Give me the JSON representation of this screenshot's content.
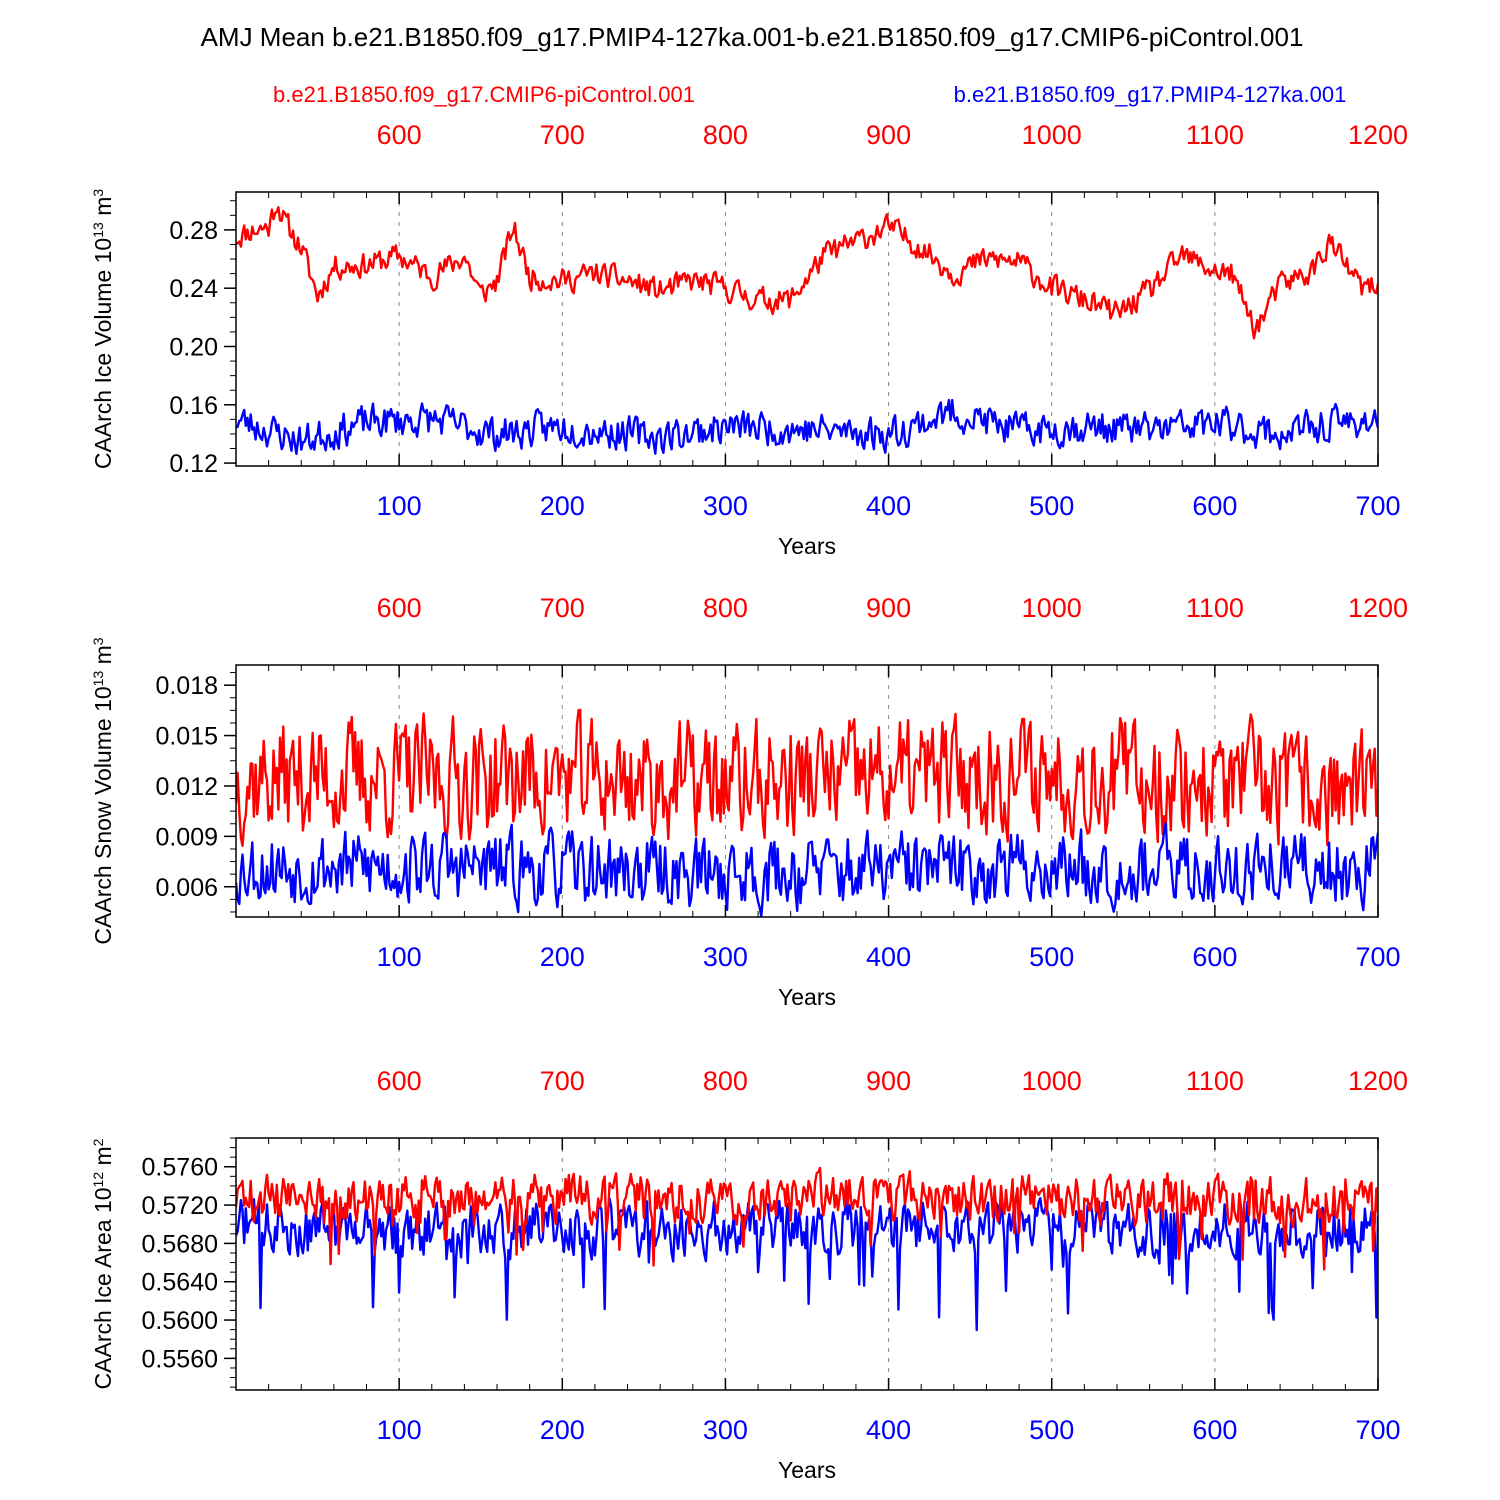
{
  "title": "AMJ Mean b.e21.B1850.f09_g17.PMIP4-127ka.001-b.e21.B1850.f09_g17.CMIP6-piControl.001",
  "legend": {
    "control_label": "b.e21.B1850.f09_g17.CMIP6-piControl.001",
    "pmip_label": "b.e21.B1850.f09_g17.PMIP4-127ka.001"
  },
  "colors": {
    "control": "#ff0000",
    "pmip": "#0000ff",
    "axis": "#000000",
    "grid": "#888888"
  },
  "chart_data": [
    {
      "type": "line",
      "ylabel_main": "CAArch Ice Volume 10",
      "ylabel_exp": "13",
      "ylabel_unit": " m",
      "ylabel_unit_exp": "3",
      "xlabel": "Years",
      "xlim_bottom": [
        0,
        700
      ],
      "xlim_top": [
        500,
        1200
      ],
      "ylim": [
        0.118,
        0.306
      ],
      "yticks": [
        0.12,
        0.16,
        0.2,
        0.24,
        0.28
      ],
      "yticklabels": [
        "0.12",
        "0.16",
        "0.20",
        "0.24",
        "0.28"
      ],
      "yminor_step": 0.01,
      "bottom_ticks": [
        100,
        200,
        300,
        400,
        500,
        600,
        700
      ],
      "bottom_ticklabels": [
        "100",
        "200",
        "300",
        "400",
        "500",
        "600",
        "700"
      ],
      "top_ticks": [
        600,
        700,
        800,
        900,
        1000,
        1100,
        1200
      ],
      "top_ticklabels": [
        "600",
        "700",
        "800",
        "900",
        "1000",
        "1100",
        "1200"
      ],
      "series": [
        {
          "name": "b.e21.B1850.f09_g17.CMIP6-piControl.001",
          "color": "#ff0000",
          "anchors": [
            [
              0,
              0.275
            ],
            [
              10,
              0.28
            ],
            [
              20,
              0.282
            ],
            [
              25,
              0.3
            ],
            [
              30,
              0.285
            ],
            [
              40,
              0.268
            ],
            [
              50,
              0.235
            ],
            [
              60,
              0.255
            ],
            [
              80,
              0.256
            ],
            [
              100,
              0.262
            ],
            [
              120,
              0.248
            ],
            [
              140,
              0.262
            ],
            [
              150,
              0.235
            ],
            [
              160,
              0.245
            ],
            [
              170,
              0.282
            ],
            [
              180,
              0.248
            ],
            [
              200,
              0.245
            ],
            [
              220,
              0.25
            ],
            [
              240,
              0.245
            ],
            [
              260,
              0.238
            ],
            [
              280,
              0.245
            ],
            [
              300,
              0.24
            ],
            [
              320,
              0.232
            ],
            [
              340,
              0.232
            ],
            [
              360,
              0.262
            ],
            [
              380,
              0.272
            ],
            [
              400,
              0.282
            ],
            [
              420,
              0.268
            ],
            [
              440,
              0.25
            ],
            [
              460,
              0.26
            ],
            [
              480,
              0.258
            ],
            [
              500,
              0.24
            ],
            [
              520,
              0.232
            ],
            [
              540,
              0.222
            ],
            [
              560,
              0.238
            ],
            [
              580,
              0.262
            ],
            [
              600,
              0.252
            ],
            [
              610,
              0.25
            ],
            [
              625,
              0.212
            ],
            [
              640,
              0.242
            ],
            [
              660,
              0.252
            ],
            [
              670,
              0.272
            ],
            [
              690,
              0.24
            ],
            [
              700,
              0.24
            ]
          ],
          "amplitude": 0.0055,
          "seed": 11
        },
        {
          "name": "b.e21.B1850.f09_g17.PMIP4-127ka.001",
          "color": "#0000ff",
          "anchors": [
            [
              0,
              0.15
            ],
            [
              40,
              0.135
            ],
            [
              80,
              0.148
            ],
            [
              120,
              0.15
            ],
            [
              160,
              0.14
            ],
            [
              200,
              0.145
            ],
            [
              260,
              0.138
            ],
            [
              300,
              0.145
            ],
            [
              350,
              0.143
            ],
            [
              400,
              0.14
            ],
            [
              440,
              0.155
            ],
            [
              480,
              0.142
            ],
            [
              520,
              0.145
            ],
            [
              560,
              0.143
            ],
            [
              600,
              0.147
            ],
            [
              640,
              0.14
            ],
            [
              680,
              0.148
            ],
            [
              700,
              0.15
            ]
          ],
          "amplitude": 0.0075,
          "seed": 23
        }
      ]
    },
    {
      "type": "line",
      "ylabel_main": "CAArch Snow Volume 10",
      "ylabel_exp": "13",
      "ylabel_unit": " m",
      "ylabel_unit_exp": "3",
      "xlabel": "Years",
      "xlim_bottom": [
        0,
        700
      ],
      "xlim_top": [
        500,
        1200
      ],
      "ylim": [
        0.0042,
        0.0192
      ],
      "yticks": [
        0.006,
        0.009,
        0.012,
        0.015,
        0.018
      ],
      "yticklabels": [
        "0.006",
        "0.009",
        "0.012",
        "0.015",
        "0.018"
      ],
      "yminor_step": 0.00075,
      "bottom_ticks": [
        100,
        200,
        300,
        400,
        500,
        600,
        700
      ],
      "bottom_ticklabels": [
        "100",
        "200",
        "300",
        "400",
        "500",
        "600",
        "700"
      ],
      "top_ticks": [
        600,
        700,
        800,
        900,
        1000,
        1100,
        1200
      ],
      "top_ticklabels": [
        "600",
        "700",
        "800",
        "900",
        "1000",
        "1100",
        "1200"
      ],
      "series": [
        {
          "name": "b.e21.B1850.f09_g17.CMIP6-piControl.001",
          "color": "#ff0000",
          "anchors": [
            [
              0,
              0.0125
            ],
            [
              100,
              0.0125
            ],
            [
              200,
              0.0125
            ],
            [
              300,
              0.0122
            ],
            [
              400,
              0.0125
            ],
            [
              500,
              0.0128
            ],
            [
              600,
              0.0122
            ],
            [
              700,
              0.0115
            ]
          ],
          "amplitude": 0.0022,
          "seed": 37
        },
        {
          "name": "b.e21.B1850.f09_g17.PMIP4-127ka.001",
          "color": "#0000ff",
          "anchors": [
            [
              0,
              0.0072
            ],
            [
              100,
              0.0072
            ],
            [
              200,
              0.007
            ],
            [
              300,
              0.0068
            ],
            [
              400,
              0.007
            ],
            [
              500,
              0.0072
            ],
            [
              600,
              0.007
            ],
            [
              700,
              0.0072
            ]
          ],
          "amplitude": 0.0014,
          "seed": 53
        }
      ]
    },
    {
      "type": "line",
      "ylabel_main": "CAArch Ice Area 10",
      "ylabel_exp": "12",
      "ylabel_unit": " m",
      "ylabel_unit_exp": "2",
      "xlabel": "Years",
      "xlim_bottom": [
        0,
        700
      ],
      "xlim_top": [
        500,
        1200
      ],
      "ylim": [
        0.5527,
        0.579
      ],
      "yticks": [
        0.556,
        0.56,
        0.564,
        0.568,
        0.572,
        0.576
      ],
      "yticklabels": [
        "0.5560",
        "0.5600",
        "0.5640",
        "0.5680",
        "0.5720",
        "0.5760"
      ],
      "yminor_step": 0.001,
      "bottom_ticks": [
        100,
        200,
        300,
        400,
        500,
        600,
        700
      ],
      "bottom_ticklabels": [
        "100",
        "200",
        "300",
        "400",
        "500",
        "600",
        "700"
      ],
      "top_ticks": [
        600,
        700,
        800,
        900,
        1000,
        1100,
        1200
      ],
      "top_ticklabels": [
        "600",
        "700",
        "800",
        "900",
        "1000",
        "1100",
        "1200"
      ],
      "series": [
        {
          "name": "b.e21.B1850.f09_g17.PMIP4-127ka.001",
          "color": "#0000ff",
          "anchors": [
            [
              0,
              0.57
            ],
            [
              100,
              0.5695
            ],
            [
              200,
              0.5695
            ],
            [
              300,
              0.5695
            ],
            [
              400,
              0.5698
            ],
            [
              500,
              0.5695
            ],
            [
              600,
              0.5697
            ],
            [
              700,
              0.57
            ]
          ],
          "amplitude": 0.0018,
          "seed": 71,
          "spike_down": 0.0085
        },
        {
          "name": "b.e21.B1850.f09_g17.CMIP6-piControl.001",
          "color": "#ff0000",
          "anchors": [
            [
              0,
              0.5728
            ],
            [
              100,
              0.5728
            ],
            [
              200,
              0.5728
            ],
            [
              300,
              0.5726
            ],
            [
              400,
              0.573
            ],
            [
              500,
              0.5728
            ],
            [
              600,
              0.5726
            ],
            [
              700,
              0.5725
            ]
          ],
          "amplitude": 0.0016,
          "seed": 89,
          "spike_down": 0.0055
        }
      ]
    }
  ]
}
